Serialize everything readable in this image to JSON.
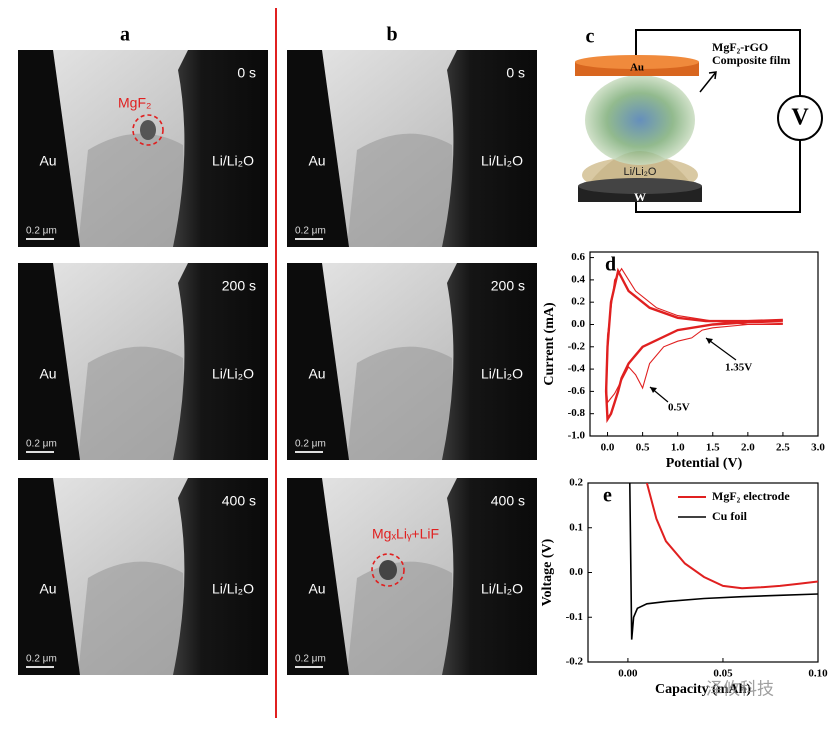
{
  "panel_labels": [
    "a",
    "b",
    "c"
  ],
  "tem": {
    "times": [
      "0 s",
      "200 s",
      "400 s"
    ],
    "left_label": "Au",
    "right_label": "Li/Li₂O",
    "scale_bar": "0.2 μm",
    "annotation_a": "MgF₂",
    "annotation_b": "MgₓLiᵧ+LiF"
  },
  "diagram": {
    "top_electrode": "Au",
    "film_line1": "MgF₂-rGO",
    "film_line2": "Composite film",
    "base": "Li/Li₂O",
    "bottom_electrode": "W",
    "meter": "V"
  },
  "watermark": "泽攸科技",
  "chart_data": [
    {
      "type": "line",
      "label": "d",
      "x_label": "Potential (V)",
      "y_label": "Current (mA)",
      "xlim": [
        -0.25,
        3.0
      ],
      "ylim": [
        -1.0,
        0.65
      ],
      "xticks": [
        {
          "value": 0,
          "label": "0.0"
        },
        0.5,
        {
          "value": 1,
          "label": "1.0"
        },
        1.5,
        {
          "value": 2,
          "label": "2.0"
        },
        2.5,
        {
          "value": 3,
          "label": "3.0"
        }
      ],
      "yticks": [
        0.6,
        0.4,
        0.2,
        {
          "value": 0,
          "label": "0.0"
        },
        -0.2,
        -0.4,
        -0.6,
        -0.8,
        {
          "value": -1,
          "label": "-1.0"
        }
      ],
      "annotations": [
        "1.35V",
        "0.5V"
      ],
      "series": [
        {
          "color": "#e02020",
          "width": 2.4,
          "x": [
            2.5,
            2.0,
            1.5,
            1.0,
            0.5,
            0.3,
            0.2,
            0.15,
            0.1,
            0.05,
            0.0,
            -0.02,
            0.0,
            0.05,
            0.15,
            0.3,
            0.6,
            1.0,
            1.4,
            2.0,
            2.5
          ],
          "values": [
            0.03,
            0.02,
            0.0,
            -0.05,
            -0.2,
            -0.35,
            -0.48,
            -0.6,
            -0.7,
            -0.8,
            -0.85,
            -0.6,
            -0.2,
            0.2,
            0.48,
            0.3,
            0.15,
            0.06,
            0.03,
            0.03,
            0.04
          ]
        },
        {
          "color": "#e02020",
          "width": 1.1,
          "x": [
            2.5,
            2.0,
            1.5,
            1.35,
            1.2,
            1.0,
            0.8,
            0.6,
            0.5,
            0.4,
            0.3,
            0.2,
            0.1,
            0.0,
            -0.02,
            0.0,
            0.1,
            0.2,
            0.4,
            0.7,
            1.0,
            1.5,
            2.0,
            2.5
          ],
          "values": [
            0.01,
            0.0,
            -0.03,
            -0.05,
            -0.12,
            -0.15,
            -0.2,
            -0.35,
            -0.57,
            -0.45,
            -0.38,
            -0.5,
            -0.62,
            -0.7,
            -0.5,
            -0.1,
            0.4,
            0.5,
            0.3,
            0.15,
            0.08,
            0.03,
            0.0,
            0.0
          ]
        }
      ]
    },
    {
      "type": "line",
      "label": "e",
      "x_label": "Capacity (mAh)",
      "y_label": "Voltage (V)",
      "xlim": [
        -0.021,
        0.1
      ],
      "ylim": [
        -0.2,
        0.2
      ],
      "xticks": [
        {
          "value": 0,
          "label": "0.00"
        },
        0.05,
        {
          "value": 0.1,
          "label": "0.10"
        }
      ],
      "yticks": [
        -0.2,
        -0.1,
        {
          "value": 0,
          "label": "0.0"
        },
        0.1,
        0.2
      ],
      "legend": "upper right",
      "series": [
        {
          "name": "MgF₂ electrode",
          "color": "#e02020",
          "width": 2,
          "x": [
            0.01,
            0.015,
            0.02,
            0.03,
            0.04,
            0.05,
            0.06,
            0.07,
            0.08,
            0.09,
            0.1
          ],
          "values": [
            0.2,
            0.12,
            0.07,
            0.02,
            -0.01,
            -0.03,
            -0.035,
            -0.033,
            -0.03,
            -0.025,
            -0.02
          ]
        },
        {
          "name": "Cu foil",
          "color": "#000000",
          "width": 1.6,
          "x": [
            0.001,
            0.002,
            0.003,
            0.005,
            0.01,
            0.02,
            0.04,
            0.06,
            0.08,
            0.1
          ],
          "values": [
            0.2,
            -0.15,
            -0.1,
            -0.08,
            -0.07,
            -0.065,
            -0.058,
            -0.054,
            -0.051,
            -0.048
          ]
        }
      ]
    }
  ]
}
